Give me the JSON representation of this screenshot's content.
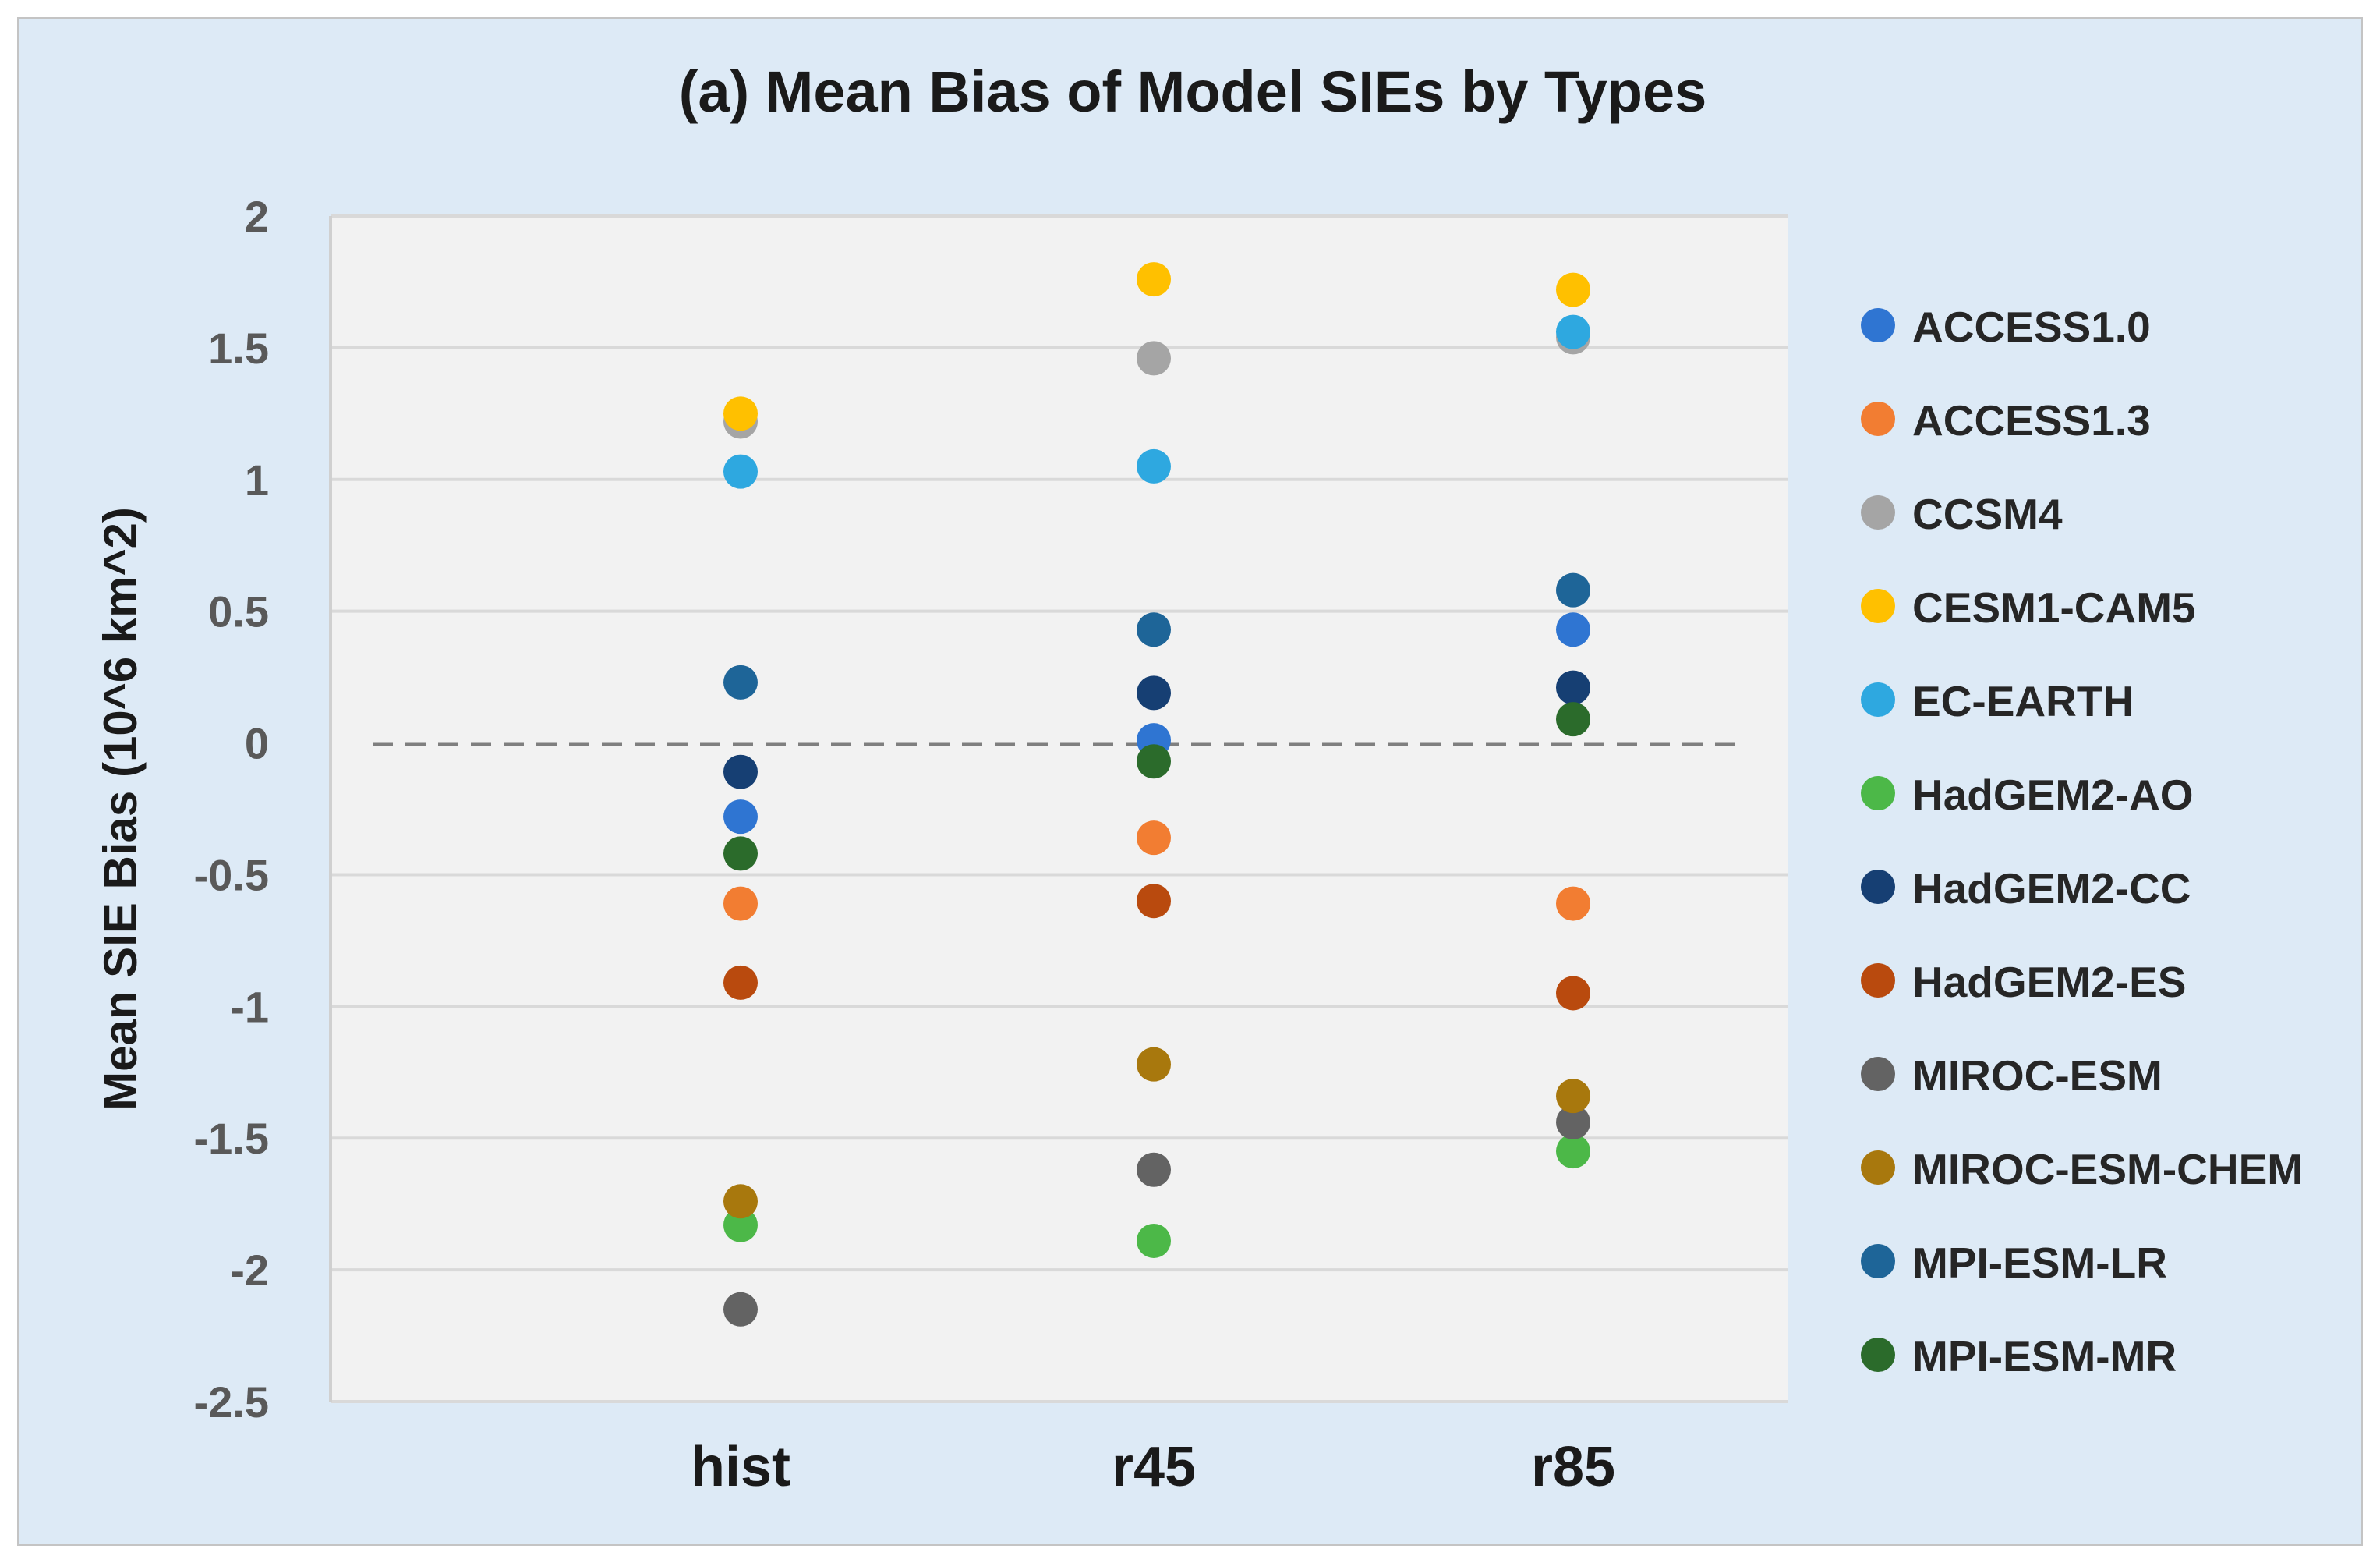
{
  "chart_data": {
    "type": "scatter",
    "title": "(a) Mean Bias of Model SIEs by Types",
    "xlabel": "",
    "ylabel": "Mean SIE Bias (10^6 km^2)",
    "categories": [
      "hist",
      "r45",
      "r85"
    ],
    "ylim": [
      -2.5,
      2
    ],
    "yticks": [
      2,
      1.5,
      1,
      0.5,
      0,
      -0.5,
      -1,
      -1.5,
      -2,
      -2.5
    ],
    "ytick_labels": [
      "2",
      "1.5",
      "1",
      "0.5",
      "0",
      "-0.5",
      "-1",
      "-1.5",
      "-2",
      "-2.5"
    ],
    "grid": true,
    "zero_line": "dashed",
    "legend_position": "right",
    "series": [
      {
        "name": "ACCESS1.0",
        "color": "#2f75d2",
        "values": [
          -0.28,
          0.01,
          0.43
        ]
      },
      {
        "name": "ACCESS1.3",
        "color": "#f27d32",
        "values": [
          -0.61,
          -0.36,
          -0.61
        ]
      },
      {
        "name": "CCSM4",
        "color": "#a5a5a5",
        "values": [
          1.22,
          1.46,
          1.54
        ]
      },
      {
        "name": "CESM1-CAM5",
        "color": "#ffc000",
        "values": [
          1.25,
          1.76,
          1.72
        ]
      },
      {
        "name": "EC-EARTH",
        "color": "#2ea8e0",
        "values": [
          1.03,
          1.05,
          1.56
        ]
      },
      {
        "name": "HadGEM2-AO",
        "color": "#4cb848",
        "values": [
          -1.83,
          -1.89,
          -1.55
        ]
      },
      {
        "name": "HadGEM2-CC",
        "color": "#163f73",
        "values": [
          -0.11,
          0.19,
          0.21
        ]
      },
      {
        "name": "HadGEM2-ES",
        "color": "#b94a0e",
        "values": [
          -0.91,
          -0.6,
          -0.95
        ]
      },
      {
        "name": "MIROC-ESM",
        "color": "#636363",
        "values": [
          -2.15,
          -1.62,
          -1.44
        ]
      },
      {
        "name": "MIROC-ESM-CHEM",
        "color": "#a8780d",
        "values": [
          -1.74,
          -1.22,
          -1.34
        ]
      },
      {
        "name": "MPI-ESM-LR",
        "color": "#1e6598",
        "values": [
          0.23,
          0.43,
          0.58
        ]
      },
      {
        "name": "MPI-ESM-MR",
        "color": "#2b6b2b",
        "values": [
          -0.42,
          -0.07,
          0.09
        ]
      }
    ]
  }
}
